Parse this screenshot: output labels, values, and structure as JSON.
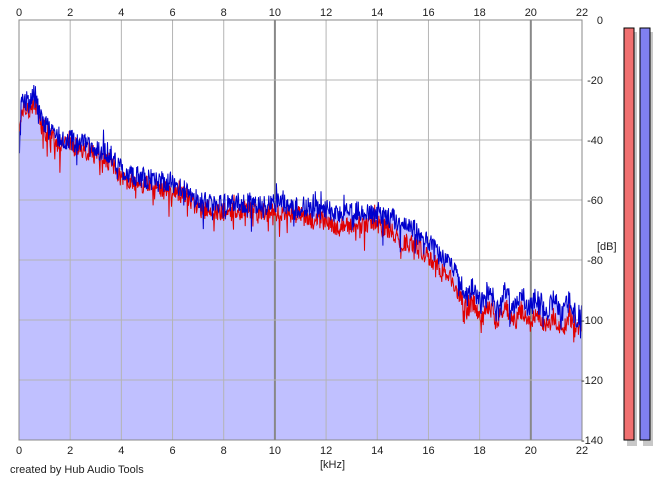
{
  "chart_data": {
    "type": "area",
    "title": "",
    "xlabel": "[kHz]",
    "ylabel": "[dB]",
    "xlim": [
      0,
      22
    ],
    "ylim": [
      -140,
      0
    ],
    "x_ticks": [
      0,
      2,
      4,
      6,
      8,
      10,
      12,
      14,
      16,
      18,
      20,
      22
    ],
    "x_tick_labels": [
      "0",
      "2",
      "4",
      "6",
      "8",
      "10",
      "12",
      "14",
      "16",
      "18",
      "20",
      "22"
    ],
    "y_ticks": [
      0,
      -20,
      -40,
      -60,
      -80,
      -100,
      -120,
      -140
    ],
    "y_tick_labels": [
      "0",
      "-20",
      "-40",
      "-60",
      "-80",
      "-100",
      "-120",
      "-140"
    ],
    "grid": true,
    "colors": {
      "fill": "#c0c0ff",
      "series_1": "#e00000",
      "series_2": "#0000cc",
      "grid": "#b4b4b4",
      "grid_major": "#888888",
      "meter_1": "#f07070",
      "meter_2": "#8080f0"
    },
    "series": [
      {
        "x": [
          0,
          0.1,
          0.2,
          0.4,
          0.6,
          0.8,
          1,
          1.5,
          2,
          2.5,
          3,
          3.5,
          4,
          4.5,
          5,
          5.5,
          6,
          6.5,
          7,
          7.5,
          8,
          8.5,
          9,
          9.5,
          10,
          10.5,
          11,
          11.5,
          12,
          12.5,
          13,
          13.5,
          14,
          14.5,
          15,
          15.5,
          16,
          16.5,
          17,
          17.5,
          18,
          18.5,
          19,
          19.5,
          20,
          20.5,
          21,
          21.5,
          22
        ],
        "values": [
          -40,
          -30,
          -28,
          -30,
          -27,
          -33,
          -37,
          -41,
          -42,
          -43,
          -45,
          -47,
          -53,
          -54,
          -55,
          -56,
          -57,
          -59,
          -63,
          -63,
          -64,
          -64,
          -63,
          -64,
          -64,
          -65,
          -65,
          -67,
          -67,
          -69,
          -69,
          -68,
          -68,
          -70,
          -74,
          -75,
          -79,
          -83,
          -88,
          -96,
          -97,
          -98,
          -98,
          -99,
          -99,
          -100,
          -101,
          -101,
          -103
        ]
      },
      {
        "x": [
          0,
          0.1,
          0.2,
          0.4,
          0.6,
          0.8,
          1,
          1.5,
          2,
          2.5,
          3,
          3.5,
          4,
          4.5,
          5,
          5.5,
          6,
          6.5,
          7,
          7.5,
          8,
          8.5,
          9,
          9.5,
          10,
          10.5,
          11,
          11.5,
          12,
          12.5,
          13,
          13.5,
          14,
          14.5,
          15,
          15.5,
          16,
          16.5,
          17,
          17.5,
          18,
          18.5,
          19,
          19.5,
          20,
          20.5,
          21,
          21.5,
          22
        ],
        "values": [
          -38,
          -27,
          -26,
          -28,
          -24,
          -31,
          -35,
          -39,
          -40,
          -41,
          -43,
          -44,
          -50,
          -52,
          -53,
          -54,
          -54,
          -57,
          -60,
          -61,
          -61,
          -61,
          -61,
          -62,
          -61,
          -62,
          -62,
          -63,
          -63,
          -64,
          -64,
          -64,
          -64,
          -66,
          -68,
          -70,
          -74,
          -79,
          -84,
          -91,
          -92,
          -93,
          -93,
          -94,
          -94,
          -95,
          -96,
          -96,
          -98
        ]
      }
    ],
    "meter_levels": [
      -140,
      -140
    ]
  },
  "footer": {
    "credit": "created by Hub Audio Tools"
  }
}
